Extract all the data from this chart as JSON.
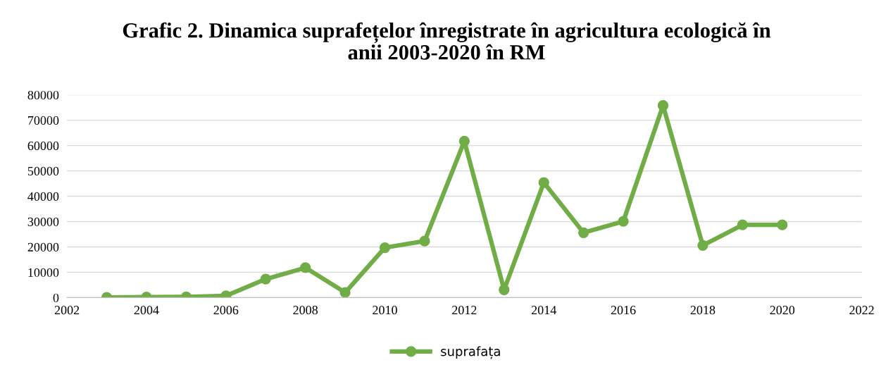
{
  "chart_data": {
    "type": "line",
    "title": "Grafic 2. Dinamica suprafețelor înregistrate în agricultura ecologică în\nanii 2003-2020 în RM",
    "x": [
      2003,
      2004,
      2005,
      2006,
      2007,
      2008,
      2009,
      2010,
      2011,
      2012,
      2013,
      2014,
      2015,
      2016,
      2017,
      2018,
      2019,
      2020
    ],
    "series": [
      {
        "name": "suprafața",
        "color": "#70ad47",
        "values": [
          100,
          200,
          300,
          700,
          7300,
          11800,
          2000,
          19700,
          22300,
          61700,
          3100,
          45400,
          25600,
          30100,
          75800,
          20600,
          28700,
          28700
        ]
      }
    ],
    "xlim": [
      2002,
      2022
    ],
    "xticks": [
      2002,
      2004,
      2006,
      2008,
      2010,
      2012,
      2014,
      2016,
      2018,
      2020,
      2022
    ],
    "ylim": [
      0,
      80000
    ],
    "yticks": [
      0,
      10000,
      20000,
      30000,
      40000,
      50000,
      60000,
      70000,
      80000
    ],
    "grid": "y",
    "legend": "bottom",
    "marker": "circle",
    "line_style": "solid"
  }
}
